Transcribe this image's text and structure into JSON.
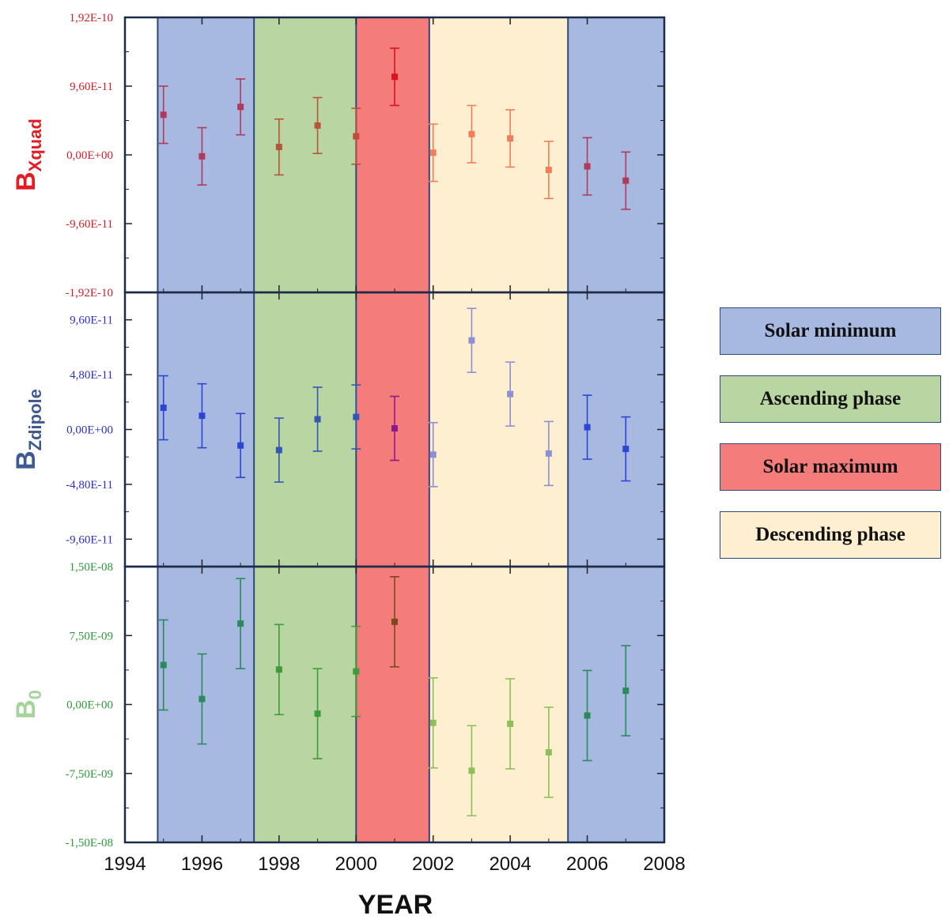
{
  "chart_data": {
    "type": "scatter",
    "x_axis": {
      "label": "YEAR",
      "range": [
        1994,
        2008
      ],
      "ticks": [
        1994,
        1996,
        1998,
        2000,
        2002,
        2004,
        2006,
        2008
      ]
    },
    "phases": [
      {
        "name": "Solar minimum",
        "start": 1994.85,
        "end": 1997.35,
        "color": "#a7b9e0"
      },
      {
        "name": "Ascending phase",
        "start": 1997.35,
        "end": 2000.0,
        "color": "#b9d6a2"
      },
      {
        "name": "Solar maximum",
        "start": 2000.0,
        "end": 2001.9,
        "color": "#f47d7b"
      },
      {
        "name": "Descending phase",
        "start": 2001.9,
        "end": 2005.5,
        "color": "#fdefd0"
      },
      {
        "name": "Solar minimum",
        "start": 2005.5,
        "end": 2008.0,
        "color": "#a7b9e0"
      }
    ],
    "legend": [
      "Solar minimum",
      "Ascending phase",
      "Solar maximum",
      "Descending phase"
    ],
    "panels": [
      {
        "name": "BXquad",
        "ylabel_main": "B",
        "ylabel_sub": "Xquad",
        "label_color": "#e31c23",
        "tick_color": "#d0202a",
        "ylim": [
          -1.92e-10,
          1.92e-10
        ],
        "ticks": [
          {
            "value": 1.92e-10,
            "label": "1,92E-10"
          },
          {
            "value": 9.6e-11,
            "label": "9,60E-11"
          },
          {
            "value": 0,
            "label": "0,00E+00"
          },
          {
            "value": -9.6e-11,
            "label": "-9,60E-11"
          },
          {
            "value": -1.92e-10,
            "label": "-1,92E-10"
          }
        ],
        "points": [
          {
            "x": 1995,
            "y": 5.6e-11,
            "err": 4e-11,
            "color": "#b03a5b"
          },
          {
            "x": 1996,
            "y": -2e-12,
            "err": 4e-11,
            "color": "#b03a5b"
          },
          {
            "x": 1997,
            "y": 6.7e-11,
            "err": 3.9e-11,
            "color": "#b03a5b"
          },
          {
            "x": 1998,
            "y": 1.1e-11,
            "err": 3.9e-11,
            "color": "#b5553a"
          },
          {
            "x": 1999,
            "y": 4.1e-11,
            "err": 3.9e-11,
            "color": "#b5553a"
          },
          {
            "x": 2000,
            "y": 2.6e-11,
            "err": 3.9e-11,
            "color": "#c14a3e"
          },
          {
            "x": 2001,
            "y": 1.09e-10,
            "err": 4e-11,
            "color": "#d8141e"
          },
          {
            "x": 2002,
            "y": 3e-12,
            "err": 4e-11,
            "color": "#ef7e5c"
          },
          {
            "x": 2003,
            "y": 2.9e-11,
            "err": 4e-11,
            "color": "#ef7e5c"
          },
          {
            "x": 2004,
            "y": 2.3e-11,
            "err": 4e-11,
            "color": "#ef7e5c"
          },
          {
            "x": 2005,
            "y": -2.1e-11,
            "err": 4e-11,
            "color": "#ef7e5c"
          },
          {
            "x": 2006,
            "y": -1.6e-11,
            "err": 4e-11,
            "color": "#b03a5b"
          },
          {
            "x": 2007,
            "y": -3.6e-11,
            "err": 4e-11,
            "color": "#b03a5b"
          }
        ]
      },
      {
        "name": "BZdipole",
        "ylabel_main": "B",
        "ylabel_sub": "Zdipole",
        "label_color": "#3f5a90",
        "tick_color": "#2d2fc0",
        "ylim": [
          -1.2e-10,
          1.2e-10
        ],
        "ticks": [
          {
            "value": 9.6e-11,
            "label": "9,60E-11"
          },
          {
            "value": 4.8e-11,
            "label": "4,80E-11"
          },
          {
            "value": 0,
            "label": "0,00E+00"
          },
          {
            "value": -4.8e-11,
            "label": "-4,80E-11"
          },
          {
            "value": -9.6e-11,
            "label": "-9,60E-11"
          }
        ],
        "points": [
          {
            "x": 1995,
            "y": 1.9e-11,
            "err": 2.8e-11,
            "color": "#2e45d3"
          },
          {
            "x": 1996,
            "y": 1.2e-11,
            "err": 2.8e-11,
            "color": "#2e45d3"
          },
          {
            "x": 1997,
            "y": -1.4e-11,
            "err": 2.8e-11,
            "color": "#2e45d3"
          },
          {
            "x": 1998,
            "y": -1.8e-11,
            "err": 2.8e-11,
            "color": "#3457b5"
          },
          {
            "x": 1999,
            "y": 9e-12,
            "err": 2.8e-11,
            "color": "#3457b5"
          },
          {
            "x": 2000,
            "y": 1.1e-11,
            "err": 2.8e-11,
            "color": "#3457b5"
          },
          {
            "x": 2001,
            "y": 1e-12,
            "err": 2.8e-11,
            "color": "#8a1a8e"
          },
          {
            "x": 2002,
            "y": -2.2e-11,
            "err": 2.8e-11,
            "color": "#8e8ed4"
          },
          {
            "x": 2003,
            "y": 7.8e-11,
            "err": 2.8e-11,
            "color": "#8e8ed4"
          },
          {
            "x": 2004,
            "y": 3.1e-11,
            "err": 2.8e-11,
            "color": "#8e8ed4"
          },
          {
            "x": 2005,
            "y": -2.1e-11,
            "err": 2.8e-11,
            "color": "#8e8ed4"
          },
          {
            "x": 2006,
            "y": 2e-12,
            "err": 2.8e-11,
            "color": "#2e45d3"
          },
          {
            "x": 2007,
            "y": -1.7e-11,
            "err": 2.8e-11,
            "color": "#2e45d3"
          }
        ]
      },
      {
        "name": "B0",
        "ylabel_main": "B",
        "ylabel_sub": "0",
        "label_color": "#a6d39a",
        "tick_color": "#2f9a3a",
        "ylim": [
          -1.5e-08,
          1.5e-08
        ],
        "ticks": [
          {
            "value": 1.5e-08,
            "label": "1,50E-08"
          },
          {
            "value": 7.5e-09,
            "label": "7,50E-09"
          },
          {
            "value": 0,
            "label": "0,00E+00"
          },
          {
            "value": -7.5e-09,
            "label": "-7,50E-09"
          },
          {
            "value": -1.5e-08,
            "label": "-1,50E-08"
          }
        ],
        "points": [
          {
            "x": 1995,
            "y": 4.3e-09,
            "err": 4.9e-09,
            "color": "#2a8a5e"
          },
          {
            "x": 1996,
            "y": 6e-10,
            "err": 4.9e-09,
            "color": "#2a8a5e"
          },
          {
            "x": 1997,
            "y": 8.8e-09,
            "err": 4.9e-09,
            "color": "#2a8a5e"
          },
          {
            "x": 1998,
            "y": 3.8e-09,
            "err": 4.9e-09,
            "color": "#3e9a3a"
          },
          {
            "x": 1999,
            "y": -1e-09,
            "err": 4.9e-09,
            "color": "#3e9a3a"
          },
          {
            "x": 2000,
            "y": 3.6e-09,
            "err": 4.9e-09,
            "color": "#3e9a3a"
          },
          {
            "x": 2001,
            "y": 9e-09,
            "err": 4.9e-09,
            "color": "#7a4a1a"
          },
          {
            "x": 2002,
            "y": -2e-09,
            "err": 4.9e-09,
            "color": "#8dc05a"
          },
          {
            "x": 2003,
            "y": -7.2e-09,
            "err": 4.9e-09,
            "color": "#8dc05a"
          },
          {
            "x": 2004,
            "y": -2.1e-09,
            "err": 4.9e-09,
            "color": "#8dc05a"
          },
          {
            "x": 2005,
            "y": -5.2e-09,
            "err": 4.9e-09,
            "color": "#8dc05a"
          },
          {
            "x": 2006,
            "y": -1.2e-09,
            "err": 4.9e-09,
            "color": "#2a8a5e"
          },
          {
            "x": 2007,
            "y": 1.5e-09,
            "err": 4.9e-09,
            "color": "#2a8a5e"
          }
        ]
      }
    ]
  }
}
